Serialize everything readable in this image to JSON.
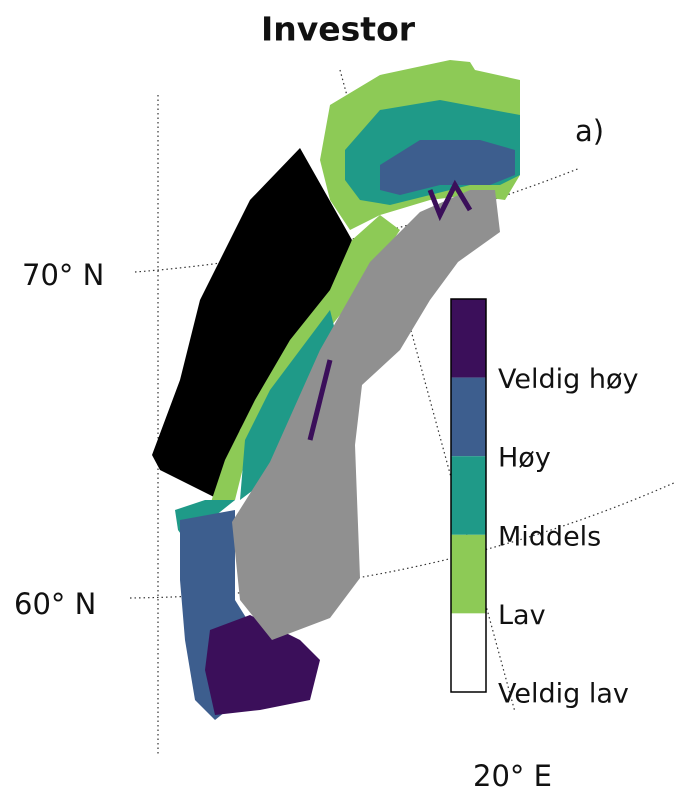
{
  "title": "Investor",
  "panel_label": "a)",
  "latitude_labels": [
    "70° N",
    "60° N"
  ],
  "longitude_labels": [
    "20° E"
  ],
  "legend": {
    "classes": [
      {
        "label": "Veldig høy",
        "color": "#3b0f5a"
      },
      {
        "label": "Høy",
        "color": "#3d5e8e"
      },
      {
        "label": "Middels",
        "color": "#1f9a88"
      },
      {
        "label": "Lav",
        "color": "#8dca56"
      },
      {
        "label": "Veldig lav",
        "color": "#ffffff"
      }
    ]
  }
}
